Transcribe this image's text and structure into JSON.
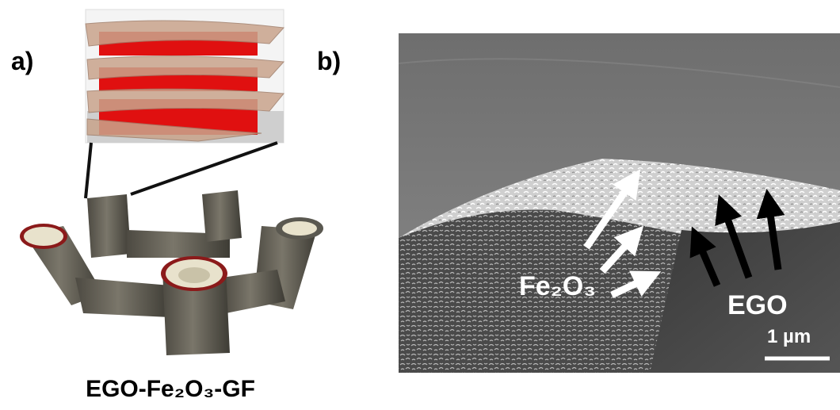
{
  "panels": [
    {
      "label": "a)",
      "caption": "EGO-Fe₂O₃-GF"
    },
    {
      "label": "b)",
      "fe2o3_label": "Fe₂O₃",
      "ego_label": "EGO",
      "scale_bar": "1 µm"
    }
  ]
}
